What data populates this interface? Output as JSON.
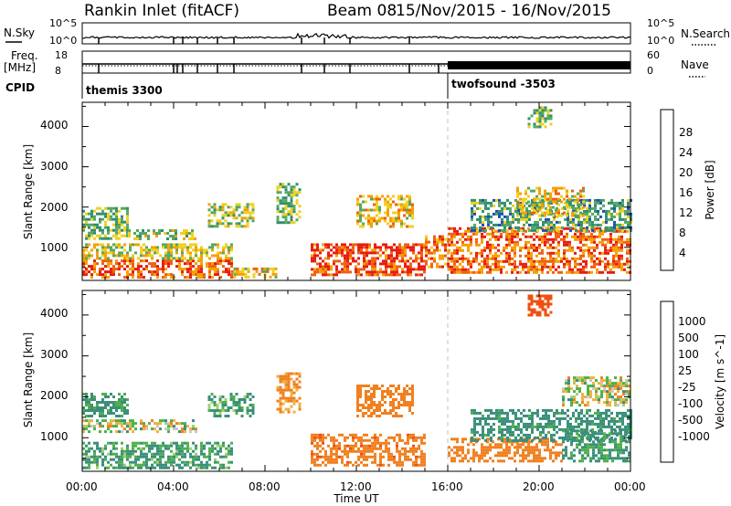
{
  "header": {
    "station": "Rankin Inlet (fitACF)",
    "beam": "Beam 08",
    "dates": "15/Nov/2015 - 16/Nov/2015"
  },
  "noise_panel": {
    "left_label": "N.Sky",
    "right_label": "N.Search",
    "left_ticks": [
      "10^5",
      "10^0"
    ],
    "right_ticks": [
      "10^5",
      "10^0"
    ]
  },
  "freq_panel": {
    "left_label_1": "Freq.",
    "left_label_2": "[MHz]",
    "right_label": "Nave",
    "left_ticks": [
      "18",
      "8"
    ],
    "right_ticks": [
      "60",
      "0"
    ]
  },
  "cpid": {
    "label": "CPID",
    "modes": [
      {
        "name": "themis 3300",
        "start_hour": 0
      },
      {
        "name": "twofsound -3503",
        "start_hour": 16
      }
    ]
  },
  "x_axis": {
    "label": "Time UT",
    "ticks": [
      "00:00",
      "04:00",
      "08:00",
      "12:00",
      "16:00",
      "20:00",
      "00:00"
    ]
  },
  "power_panel": {
    "ylabel": "Slant Range [km]",
    "yticks": [
      "4000",
      "3000",
      "2000",
      "1000"
    ],
    "colorbar_label": "Power [dB]",
    "colorbar_ticks": [
      "28",
      "24",
      "20",
      "16",
      "12",
      "8",
      "4"
    ],
    "colors": [
      "#1020e0",
      "#2050b0",
      "#2f8f6f",
      "#55a860",
      "#f0d020",
      "#f5a000",
      "#f06010",
      "#e81a10"
    ]
  },
  "velocity_panel": {
    "ylabel": "Slant Range [km]",
    "yticks": [
      "4000",
      "3000",
      "2000",
      "1000"
    ],
    "colorbar_label": "Velocity [m s^-1]",
    "colorbar_ticks": [
      "1000",
      "500",
      "100",
      "25",
      "-25",
      "-100",
      "-500",
      "-1000"
    ],
    "colors": [
      "#1a40c0",
      "#2a6fa0",
      "#3a8f7a",
      "#4fb04a",
      "#a0d070",
      "#c8c8c8",
      "#f0b040",
      "#f08020",
      "#f05010",
      "#e01010"
    ]
  },
  "chart_data": {
    "type": "heatmap",
    "x": {
      "unit": "hours UT",
      "range": [
        0,
        24
      ]
    },
    "y": {
      "unit": "km",
      "range": [
        180,
        4600
      ]
    },
    "power_scale": {
      "unit": "dB",
      "range": [
        0,
        32
      ]
    },
    "velocity_scale": {
      "unit": "m s^-1",
      "range": [
        -1000,
        1000
      ]
    },
    "power_regions": [
      {
        "t": [
          0.0,
          6.5
        ],
        "r": [
          250,
          700
        ],
        "power": 26
      },
      {
        "t": [
          0.0,
          6.5
        ],
        "r": [
          700,
          1100
        ],
        "power": 18
      },
      {
        "t": [
          0.0,
          2.0
        ],
        "r": [
          1200,
          2000
        ],
        "power": 14
      },
      {
        "t": [
          2.0,
          5.0
        ],
        "r": [
          1200,
          1450
        ],
        "power": 16
      },
      {
        "t": [
          5.5,
          7.5
        ],
        "r": [
          1500,
          2100
        ],
        "power": 16
      },
      {
        "t": [
          6.5,
          8.5
        ],
        "r": [
          250,
          500
        ],
        "power": 20
      },
      {
        "t": [
          8.5,
          9.5
        ],
        "r": [
          1600,
          2600
        ],
        "power": 14
      },
      {
        "t": [
          10.0,
          15.0
        ],
        "r": [
          300,
          1100
        ],
        "power": 28
      },
      {
        "t": [
          12.0,
          14.5
        ],
        "r": [
          1500,
          2300
        ],
        "power": 20
      },
      {
        "t": [
          15.0,
          16.0
        ],
        "r": [
          500,
          1300
        ],
        "power": 24
      },
      {
        "t": [
          16.0,
          24.0
        ],
        "r": [
          400,
          1500
        ],
        "power": 26
      },
      {
        "t": [
          17.0,
          24.0
        ],
        "r": [
          1400,
          2200
        ],
        "power": 12
      },
      {
        "t": [
          19.0,
          22.0
        ],
        "r": [
          1800,
          2500
        ],
        "power": 20
      },
      {
        "t": [
          19.5,
          20.5
        ],
        "r": [
          4000,
          4500
        ],
        "power": 14
      }
    ],
    "velocity_regions": [
      {
        "t": [
          0.0,
          6.5
        ],
        "r": [
          250,
          900
        ],
        "velocity": 120
      },
      {
        "t": [
          0.0,
          2.0
        ],
        "r": [
          1500,
          2100
        ],
        "velocity": 150
      },
      {
        "t": [
          0.0,
          5.0
        ],
        "r": [
          1150,
          1450
        ],
        "velocity": 0
      },
      {
        "t": [
          5.5,
          7.5
        ],
        "r": [
          1500,
          2100
        ],
        "velocity": 120
      },
      {
        "t": [
          8.5,
          9.5
        ],
        "r": [
          1600,
          2600
        ],
        "velocity": -150
      },
      {
        "t": [
          10.0,
          15.0
        ],
        "r": [
          300,
          1100
        ],
        "velocity": -400
      },
      {
        "t": [
          12.0,
          14.5
        ],
        "r": [
          1500,
          2300
        ],
        "velocity": -300
      },
      {
        "t": [
          16.0,
          21.0
        ],
        "r": [
          400,
          1000
        ],
        "velocity": -300
      },
      {
        "t": [
          17.0,
          24.0
        ],
        "r": [
          900,
          1700
        ],
        "velocity": 200
      },
      {
        "t": [
          21.0,
          24.0
        ],
        "r": [
          400,
          1200
        ],
        "velocity": 150
      },
      {
        "t": [
          21.0,
          24.0
        ],
        "r": [
          1800,
          2500
        ],
        "velocity": 0
      },
      {
        "t": [
          19.5,
          20.5
        ],
        "r": [
          4000,
          4500
        ],
        "velocity": -700
      }
    ],
    "nave_mode_change_hour": 16
  }
}
